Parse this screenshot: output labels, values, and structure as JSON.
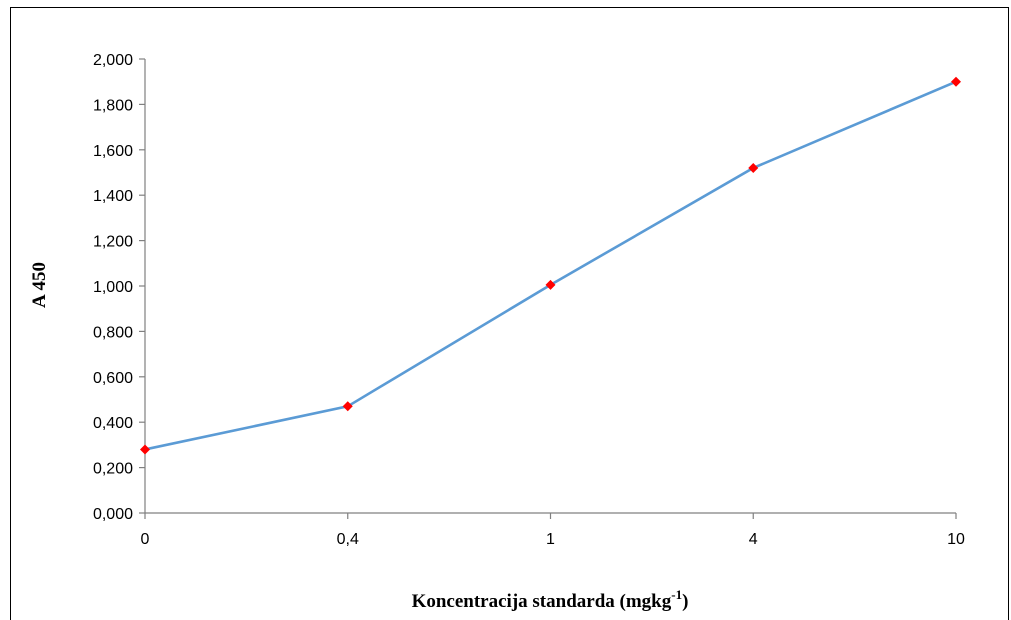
{
  "chart_data": {
    "type": "line",
    "categories": [
      "0",
      "0,4",
      "1",
      "4",
      "10"
    ],
    "series": [
      {
        "values": [
          0.28,
          0.47,
          1.005,
          1.52,
          1.9
        ]
      }
    ],
    "y_ticks": [
      "0,000",
      "0,200",
      "0,400",
      "0,600",
      "0,800",
      "1,000",
      "1,200",
      "1,400",
      "1,600",
      "1,800",
      "2,000"
    ],
    "ylim": [
      0,
      2
    ],
    "ylabel": "A 450",
    "xlabel_main": "Koncentracija standarda (mgkg",
    "xlabel_sup": "-1",
    "xlabel_end": ")",
    "grid": false,
    "legend": "none",
    "colors": {
      "line": "#5b9bd5",
      "marker": "#ff0000"
    }
  }
}
